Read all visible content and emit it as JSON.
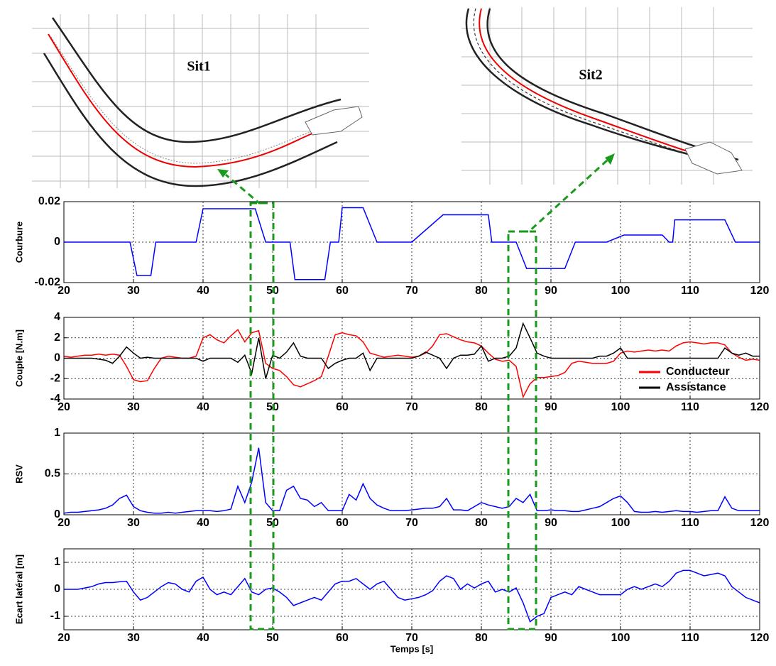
{
  "annotations": {
    "sit1": "Sit1",
    "sit2": "Sit2"
  },
  "chart_data": [
    {
      "type": "line",
      "ylabel": "Courbure",
      "xlim": [
        20,
        120
      ],
      "ylim": [
        -0.02,
        0.02
      ],
      "xticks": [
        20,
        30,
        40,
        50,
        60,
        70,
        80,
        90,
        100,
        110,
        120
      ],
      "yticks": [
        -0.02,
        0,
        0.02
      ],
      "grid": true,
      "x": [
        20,
        29.5,
        30.5,
        32.5,
        33.2,
        39,
        40,
        47.5,
        49,
        52.5,
        53.2,
        57.5,
        58.3,
        59.5,
        60,
        63,
        65,
        70,
        74.5,
        81,
        81.5,
        85,
        86.5,
        92,
        93.5,
        98,
        100.5,
        106,
        107,
        107.5,
        107.8,
        115,
        116.5,
        120
      ],
      "series": [
        {
          "name": "Courbure",
          "color": "#0000ff",
          "values": [
            0,
            0,
            -0.0165,
            -0.0165,
            0,
            0,
            0.0165,
            0.0165,
            0,
            0,
            -0.0185,
            -0.0185,
            0,
            0,
            0.017,
            0.017,
            0,
            0,
            0.0135,
            0.0135,
            0,
            0,
            -0.013,
            -0.013,
            0,
            0,
            0.0035,
            0.0035,
            0,
            0,
            0.011,
            0.011,
            0,
            0
          ]
        }
      ]
    },
    {
      "type": "line",
      "ylabel": "Couple [N.m]",
      "xlim": [
        20,
        120
      ],
      "ylim": [
        -4,
        4
      ],
      "xticks": [
        20,
        30,
        40,
        50,
        60,
        70,
        80,
        90,
        100,
        110,
        120
      ],
      "yticks": [
        -4,
        -2,
        0,
        2,
        4
      ],
      "grid": true,
      "legend": "lower-right",
      "x": [
        20,
        21,
        22,
        23,
        24,
        25,
        26,
        27,
        28,
        29,
        30,
        31,
        32,
        33,
        34,
        35,
        36,
        37,
        38,
        39,
        40,
        41,
        42,
        43,
        44,
        45,
        46,
        47,
        48,
        49,
        50,
        51,
        52,
        53,
        54,
        55,
        56,
        57,
        58,
        59,
        60,
        61,
        62,
        63,
        64,
        65,
        66,
        67,
        68,
        69,
        70,
        71,
        72,
        73,
        74,
        75,
        76,
        77,
        78,
        79,
        80,
        81,
        82,
        83,
        84,
        85,
        86,
        87,
        88,
        89,
        90,
        91,
        92,
        93,
        94,
        95,
        96,
        97,
        98,
        99,
        100,
        101,
        102,
        103,
        104,
        105,
        106,
        107,
        108,
        109,
        110,
        111,
        112,
        113,
        114,
        115,
        116,
        117,
        118,
        119,
        120
      ],
      "series": [
        {
          "name": "Conducteur",
          "color": "#ff0000",
          "values": [
            0.2,
            0.1,
            0.2,
            0.3,
            0.3,
            0.4,
            0.3,
            0.4,
            0.3,
            -0.8,
            -2.1,
            -2.3,
            -2.2,
            -1,
            0,
            0.2,
            0.1,
            0,
            0,
            0.2,
            2,
            2.3,
            1.8,
            1.5,
            2.2,
            2.8,
            1.6,
            2.5,
            2.7,
            -0.5,
            -1,
            -1.2,
            -1.8,
            -2.6,
            -2.8,
            -2.5,
            -2.2,
            -1.8,
            0.2,
            2.3,
            2.5,
            2.3,
            2.2,
            1.6,
            0.5,
            0.3,
            0.1,
            0.2,
            0.3,
            0.2,
            0.1,
            0.2,
            0.5,
            1.2,
            2.3,
            2.4,
            2.1,
            1.8,
            1.6,
            1.5,
            1.2,
            0.5,
            -0.1,
            -0.3,
            -0.2,
            -0.8,
            -3.8,
            -2.5,
            -1.9,
            -1.9,
            -1.8,
            -1.7,
            -1.4,
            -0.5,
            -0.3,
            -0.4,
            -0.5,
            -0.5,
            -0.5,
            -0.3,
            0.5,
            0.7,
            0.6,
            0.7,
            0.8,
            0.7,
            0.8,
            0.7,
            1.2,
            1.5,
            1.6,
            1.5,
            1.4,
            1.5,
            1.5,
            1.3,
            0.5,
            0.1,
            -0.2,
            -0.1,
            -0.2
          ]
        },
        {
          "name": "Assistance",
          "color": "#000000",
          "values": [
            0,
            0,
            0,
            0,
            0,
            -0.1,
            -0.2,
            -0.5,
            0.2,
            1.1,
            0.5,
            0,
            0.1,
            0,
            0,
            0,
            0,
            0,
            0,
            0,
            -0.3,
            0,
            0,
            0,
            0,
            -0.4,
            0.3,
            -1.5,
            2,
            -2,
            0.3,
            0,
            0.6,
            1.5,
            0.2,
            0,
            0,
            0,
            -1,
            -0.5,
            -0.2,
            0,
            0,
            0.5,
            -1.2,
            0,
            0,
            0,
            0,
            0,
            0,
            0.2,
            0.6,
            0.3,
            0,
            -1,
            0,
            0.3,
            0.3,
            0.4,
            1.2,
            -0.3,
            0,
            0,
            0.2,
            1,
            3.4,
            2,
            0.5,
            0.2,
            0,
            0,
            0,
            0,
            0,
            0,
            0,
            0.2,
            0.2,
            0.5,
            1,
            0,
            0,
            0,
            0,
            0,
            0,
            0,
            0,
            0,
            0,
            0,
            0,
            0,
            0,
            1,
            0.5,
            0.3,
            0.5,
            0.2,
            0.2
          ]
        }
      ]
    },
    {
      "type": "line",
      "ylabel": "RSV",
      "xlim": [
        20,
        120
      ],
      "ylim": [
        0,
        1
      ],
      "xticks": [
        20,
        30,
        40,
        50,
        60,
        70,
        80,
        90,
        100,
        110,
        120
      ],
      "yticks": [
        0,
        0.5,
        1
      ],
      "grid": true,
      "x": [
        20,
        21,
        22,
        23,
        24,
        25,
        26,
        27,
        28,
        29,
        30,
        31,
        32,
        33,
        34,
        35,
        36,
        37,
        38,
        39,
        40,
        41,
        42,
        43,
        44,
        45,
        46,
        47,
        48,
        49,
        50,
        51,
        52,
        53,
        54,
        55,
        56,
        57,
        58,
        59,
        60,
        61,
        62,
        63,
        64,
        65,
        66,
        67,
        68,
        69,
        70,
        71,
        72,
        73,
        74,
        75,
        76,
        77,
        78,
        79,
        80,
        81,
        82,
        83,
        84,
        85,
        86,
        87,
        88,
        89,
        90,
        91,
        92,
        93,
        94,
        95,
        96,
        97,
        98,
        99,
        100,
        101,
        102,
        103,
        104,
        105,
        106,
        107,
        108,
        109,
        110,
        111,
        112,
        113,
        114,
        115,
        116,
        117,
        118,
        119,
        120
      ],
      "series": [
        {
          "name": "RSV",
          "color": "#0000ff",
          "values": [
            0.02,
            0.03,
            0.03,
            0.04,
            0.05,
            0.06,
            0.08,
            0.12,
            0.2,
            0.24,
            0.1,
            0.05,
            0.03,
            0.02,
            0.02,
            0.03,
            0.02,
            0.03,
            0.04,
            0.05,
            0.05,
            0.05,
            0.04,
            0.05,
            0.07,
            0.35,
            0.15,
            0.4,
            0.82,
            0.15,
            0.05,
            0.05,
            0.3,
            0.35,
            0.2,
            0.18,
            0.1,
            0.15,
            0.05,
            0.05,
            0.05,
            0.25,
            0.18,
            0.38,
            0.2,
            0.12,
            0.08,
            0.05,
            0.05,
            0.05,
            0.06,
            0.07,
            0.08,
            0.08,
            0.1,
            0.2,
            0.06,
            0.06,
            0.05,
            0.1,
            0.15,
            0.12,
            0.1,
            0.08,
            0.1,
            0.2,
            0.15,
            0.25,
            0.05,
            0.05,
            0.06,
            0.05,
            0.05,
            0.04,
            0.04,
            0.06,
            0.08,
            0.1,
            0.15,
            0.2,
            0.23,
            0.15,
            0.04,
            0.03,
            0.03,
            0.04,
            0.03,
            0.04,
            0.05,
            0.04,
            0.04,
            0.03,
            0.04,
            0.05,
            0.05,
            0.22,
            0.08,
            0.05,
            0.05,
            0.05,
            0.05
          ]
        }
      ]
    },
    {
      "type": "line",
      "ylabel": "Ecart latéral [m]",
      "xlabel": "Temps [s]",
      "xlim": [
        20,
        120
      ],
      "ylim": [
        -1.5,
        1.5
      ],
      "xticks": [
        20,
        30,
        40,
        50,
        60,
        70,
        80,
        90,
        100,
        110,
        120
      ],
      "yticks": [
        -1,
        0,
        1
      ],
      "grid": true,
      "x": [
        20,
        21,
        22,
        23,
        24,
        25,
        26,
        27,
        28,
        29,
        30,
        31,
        32,
        33,
        34,
        35,
        36,
        37,
        38,
        39,
        40,
        41,
        42,
        43,
        44,
        45,
        46,
        47,
        48,
        49,
        50,
        51,
        52,
        53,
        54,
        55,
        56,
        57,
        58,
        59,
        60,
        61,
        62,
        63,
        64,
        65,
        66,
        67,
        68,
        69,
        70,
        71,
        72,
        73,
        74,
        75,
        76,
        77,
        78,
        79,
        80,
        81,
        82,
        83,
        84,
        85,
        86,
        87,
        88,
        89,
        90,
        91,
        92,
        93,
        94,
        95,
        96,
        97,
        98,
        99,
        100,
        101,
        102,
        103,
        104,
        105,
        106,
        107,
        108,
        109,
        110,
        111,
        112,
        113,
        114,
        115,
        116,
        117,
        118,
        119,
        120
      ],
      "series": [
        {
          "name": "Ecart latéral",
          "color": "#0000ff",
          "values": [
            0,
            0,
            0,
            0.05,
            0.1,
            0.2,
            0.25,
            0.25,
            0.28,
            0.3,
            -0.1,
            -0.4,
            -0.3,
            -0.1,
            0.1,
            0.25,
            0.2,
            0,
            -0.1,
            0.3,
            0.45,
            0,
            -0.2,
            -0.1,
            -0.2,
            0.1,
            0.4,
            -0.1,
            -0.2,
            0,
            0.05,
            -0.1,
            -0.3,
            -0.6,
            -0.5,
            -0.4,
            -0.3,
            -0.4,
            -0.1,
            0.2,
            0.3,
            0.3,
            0.4,
            0.2,
            0,
            0.2,
            0.3,
            0,
            -0.3,
            -0.4,
            -0.35,
            -0.3,
            -0.2,
            -0.05,
            0.3,
            0.5,
            0.4,
            0,
            0.2,
            0.05,
            0.2,
            0.3,
            -0.1,
            0,
            -0.1,
            0.05,
            -0.5,
            -1.2,
            -1,
            -0.9,
            -0.3,
            -0.2,
            -0.1,
            -0.2,
            0.1,
            0,
            -0.1,
            -0.2,
            -0.2,
            -0.2,
            -0.2,
            0,
            0.1,
            0,
            0.1,
            0.2,
            0.1,
            0.3,
            0.6,
            0.7,
            0.7,
            0.6,
            0.5,
            0.55,
            0.6,
            0.5,
            0.1,
            -0.1,
            -0.3,
            -0.4,
            -0.5
          ]
        }
      ]
    }
  ]
}
